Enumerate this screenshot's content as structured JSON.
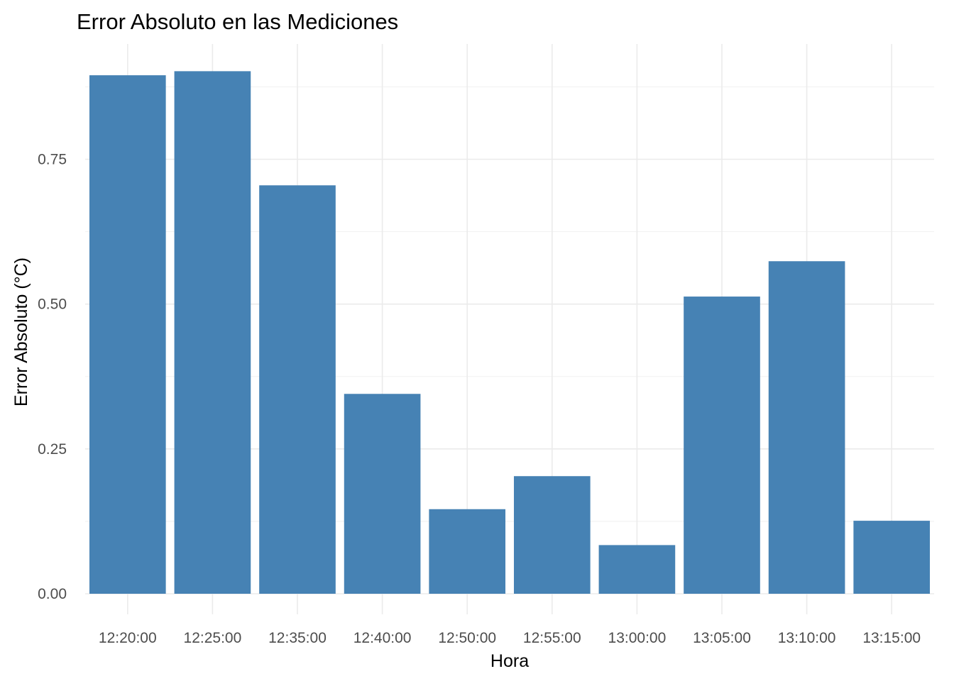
{
  "chart_data": {
    "type": "bar",
    "title": "Error Absoluto en las Mediciones",
    "xlabel": "Hora",
    "ylabel": "Error Absoluto (°C)",
    "categories": [
      "12:20:00",
      "12:25:00",
      "12:35:00",
      "12:40:00",
      "12:50:00",
      "12:55:00",
      "13:00:00",
      "13:05:00",
      "13:10:00",
      "13:15:00"
    ],
    "values": [
      0.895,
      0.902,
      0.705,
      0.345,
      0.146,
      0.203,
      0.084,
      0.513,
      0.574,
      0.126
    ],
    "ylim": [
      0,
      0.9469
    ],
    "yticks": [
      0.0,
      0.25,
      0.5,
      0.75
    ],
    "ytick_labels": [
      "0.00",
      "0.25",
      "0.50",
      "0.75"
    ],
    "grid": true,
    "bar_color": "#4682b4"
  }
}
